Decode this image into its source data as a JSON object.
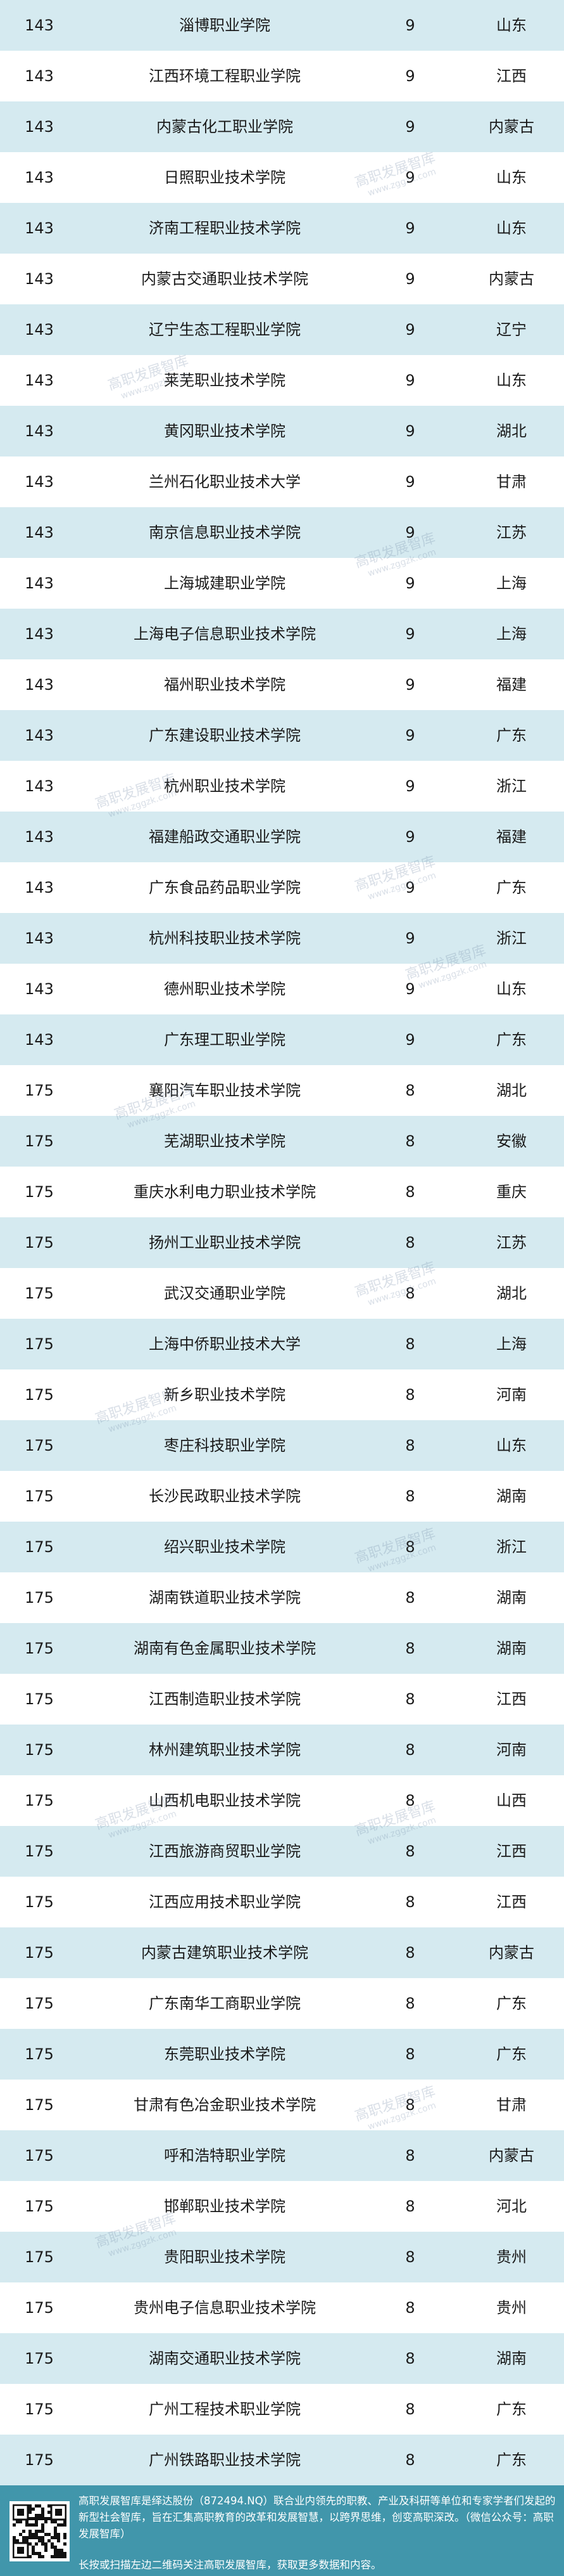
{
  "colors": {
    "row_shade": "#d5eaf0",
    "footer_bg": "#4196ab"
  },
  "watermark": {
    "text": "高职发展智库",
    "url": "www.zggzk.com"
  },
  "rows": [
    {
      "rank": "143",
      "name": "淄博职业学院",
      "count": "9",
      "province": "山东"
    },
    {
      "rank": "143",
      "name": "江西环境工程职业学院",
      "count": "9",
      "province": "江西"
    },
    {
      "rank": "143",
      "name": "内蒙古化工职业学院",
      "count": "9",
      "province": "内蒙古"
    },
    {
      "rank": "143",
      "name": "日照职业技术学院",
      "count": "9",
      "province": "山东"
    },
    {
      "rank": "143",
      "name": "济南工程职业技术学院",
      "count": "9",
      "province": "山东"
    },
    {
      "rank": "143",
      "name": "内蒙古交通职业技术学院",
      "count": "9",
      "province": "内蒙古"
    },
    {
      "rank": "143",
      "name": "辽宁生态工程职业学院",
      "count": "9",
      "province": "辽宁"
    },
    {
      "rank": "143",
      "name": "莱芜职业技术学院",
      "count": "9",
      "province": "山东"
    },
    {
      "rank": "143",
      "name": "黄冈职业技术学院",
      "count": "9",
      "province": "湖北"
    },
    {
      "rank": "143",
      "name": "兰州石化职业技术大学",
      "count": "9",
      "province": "甘肃"
    },
    {
      "rank": "143",
      "name": "南京信息职业技术学院",
      "count": "9",
      "province": "江苏"
    },
    {
      "rank": "143",
      "name": "上海城建职业学院",
      "count": "9",
      "province": "上海"
    },
    {
      "rank": "143",
      "name": "上海电子信息职业技术学院",
      "count": "9",
      "province": "上海"
    },
    {
      "rank": "143",
      "name": "福州职业技术学院",
      "count": "9",
      "province": "福建"
    },
    {
      "rank": "143",
      "name": "广东建设职业技术学院",
      "count": "9",
      "province": "广东"
    },
    {
      "rank": "143",
      "name": "杭州职业技术学院",
      "count": "9",
      "province": "浙江"
    },
    {
      "rank": "143",
      "name": "福建船政交通职业学院",
      "count": "9",
      "province": "福建"
    },
    {
      "rank": "143",
      "name": "广东食品药品职业学院",
      "count": "9",
      "province": "广东"
    },
    {
      "rank": "143",
      "name": "杭州科技职业技术学院",
      "count": "9",
      "province": "浙江"
    },
    {
      "rank": "143",
      "name": "德州职业技术学院",
      "count": "9",
      "province": "山东"
    },
    {
      "rank": "143",
      "name": "广东理工职业学院",
      "count": "9",
      "province": "广东"
    },
    {
      "rank": "175",
      "name": "襄阳汽车职业技术学院",
      "count": "8",
      "province": "湖北"
    },
    {
      "rank": "175",
      "name": "芜湖职业技术学院",
      "count": "8",
      "province": "安徽"
    },
    {
      "rank": "175",
      "name": "重庆水利电力职业技术学院",
      "count": "8",
      "province": "重庆"
    },
    {
      "rank": "175",
      "name": "扬州工业职业技术学院",
      "count": "8",
      "province": "江苏"
    },
    {
      "rank": "175",
      "name": "武汉交通职业学院",
      "count": "8",
      "province": "湖北"
    },
    {
      "rank": "175",
      "name": "上海中侨职业技术大学",
      "count": "8",
      "province": "上海"
    },
    {
      "rank": "175",
      "name": "新乡职业技术学院",
      "count": "8",
      "province": "河南"
    },
    {
      "rank": "175",
      "name": "枣庄科技职业学院",
      "count": "8",
      "province": "山东"
    },
    {
      "rank": "175",
      "name": "长沙民政职业技术学院",
      "count": "8",
      "province": "湖南"
    },
    {
      "rank": "175",
      "name": "绍兴职业技术学院",
      "count": "8",
      "province": "浙江"
    },
    {
      "rank": "175",
      "name": "湖南铁道职业技术学院",
      "count": "8",
      "province": "湖南"
    },
    {
      "rank": "175",
      "name": "湖南有色金属职业技术学院",
      "count": "8",
      "province": "湖南"
    },
    {
      "rank": "175",
      "name": "江西制造职业技术学院",
      "count": "8",
      "province": "江西"
    },
    {
      "rank": "175",
      "name": "林州建筑职业技术学院",
      "count": "8",
      "province": "河南"
    },
    {
      "rank": "175",
      "name": "山西机电职业技术学院",
      "count": "8",
      "province": "山西"
    },
    {
      "rank": "175",
      "name": "江西旅游商贸职业学院",
      "count": "8",
      "province": "江西"
    },
    {
      "rank": "175",
      "name": "江西应用技术职业学院",
      "count": "8",
      "province": "江西"
    },
    {
      "rank": "175",
      "name": "内蒙古建筑职业技术学院",
      "count": "8",
      "province": "内蒙古"
    },
    {
      "rank": "175",
      "name": "广东南华工商职业学院",
      "count": "8",
      "province": "广东"
    },
    {
      "rank": "175",
      "name": "东莞职业技术学院",
      "count": "8",
      "province": "广东"
    },
    {
      "rank": "175",
      "name": "甘肃有色冶金职业技术学院",
      "count": "8",
      "province": "甘肃"
    },
    {
      "rank": "175",
      "name": "呼和浩特职业学院",
      "count": "8",
      "province": "内蒙古"
    },
    {
      "rank": "175",
      "name": "邯郸职业技术学院",
      "count": "8",
      "province": "河北"
    },
    {
      "rank": "175",
      "name": "贵阳职业技术学院",
      "count": "8",
      "province": "贵州"
    },
    {
      "rank": "175",
      "name": "贵州电子信息职业技术学院",
      "count": "8",
      "province": "贵州"
    },
    {
      "rank": "175",
      "name": "湖南交通职业技术学院",
      "count": "8",
      "province": "湖南"
    },
    {
      "rank": "175",
      "name": "广州工程技术职业学院",
      "count": "8",
      "province": "广东"
    },
    {
      "rank": "175",
      "name": "广州铁路职业技术学院",
      "count": "8",
      "province": "广东"
    }
  ],
  "footer": {
    "description": "高职发展智库是绎达股份（872494.NQ）联合业内领先的职教、产业及科研等单位和专家学者们发起的新型社会智库，旨在汇集高职教育的改革和发展智慧，以跨界思维，创变高职深改。（微信公众号：高职发展智库）",
    "follow": "长按或扫描左边二维码关注高职发展智库，获取更多数据和内容。"
  }
}
